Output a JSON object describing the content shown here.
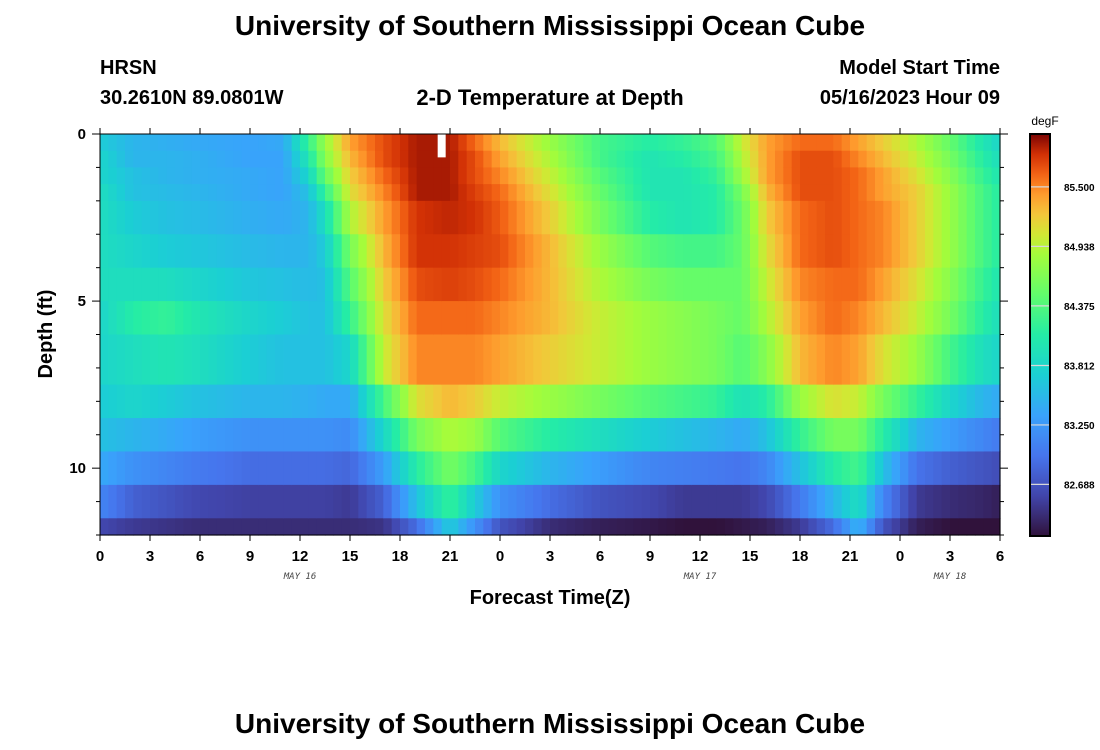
{
  "page_title": "University of Southern Mississippi Ocean Cube",
  "footer_title": "University of Southern Mississippi Ocean Cube",
  "station": {
    "name": "HRSN",
    "coords": "30.2610N  89.0801W"
  },
  "plot_title": "2-D Temperature at Depth",
  "model_start": {
    "label": "Model Start Time",
    "value": "05/16/2023 Hour 09"
  },
  "chart_data": {
    "type": "heatmap",
    "title": "2-D Temperature at Depth",
    "xlabel": "Forecast Time(Z)",
    "ylabel": "Depth (ft)",
    "x_tick_labels": [
      "0",
      "3",
      "6",
      "9",
      "12",
      "15",
      "18",
      "21",
      "0",
      "3",
      "6",
      "9",
      "12",
      "15",
      "18",
      "21",
      "0",
      "3",
      "6"
    ],
    "x_hours": [
      0,
      54
    ],
    "y_tick_labels": [
      "0",
      "5",
      "10"
    ],
    "y_ticks": [
      0,
      5,
      10
    ],
    "ylim": [
      0,
      12
    ],
    "date_labels": [
      {
        "text": "MAY 16",
        "hour": 12
      },
      {
        "text": "MAY 17",
        "hour": 36
      },
      {
        "text": "MAY 18",
        "hour": 51
      }
    ],
    "colorbar": {
      "unit": "degF",
      "vmin": 82.2,
      "vmax": 86.0,
      "ticks": [
        "85.500",
        "84.938",
        "84.375",
        "83.812",
        "83.250",
        "82.688"
      ],
      "tick_values": [
        85.5,
        84.938,
        84.375,
        83.812,
        83.25,
        82.688
      ]
    },
    "depth_layers": [
      0.0,
      0.5,
      1.0,
      1.5,
      2.0,
      3.0,
      4.0,
      5.0,
      6.0,
      7.5,
      8.5,
      9.5,
      10.5,
      11.5,
      12.0
    ],
    "profiles": [
      {
        "hour": 0,
        "temps": [
          83.7,
          83.8,
          83.8,
          83.9,
          83.9,
          83.9,
          83.9,
          83.8,
          83.8,
          83.7,
          83.6,
          83.4,
          83.1,
          82.6
        ]
      },
      {
        "hour": 2,
        "temps": [
          83.5,
          83.5,
          83.6,
          83.6,
          83.7,
          83.8,
          83.9,
          84.1,
          83.9,
          83.8,
          83.5,
          83.2,
          82.8,
          82.5
        ]
      },
      {
        "hour": 4,
        "temps": [
          83.45,
          83.5,
          83.5,
          83.55,
          83.6,
          83.7,
          83.9,
          84.2,
          84.0,
          83.7,
          83.4,
          83.1,
          82.7,
          82.45
        ]
      },
      {
        "hour": 6,
        "temps": [
          83.4,
          83.45,
          83.45,
          83.5,
          83.55,
          83.65,
          83.8,
          84.0,
          83.9,
          83.6,
          83.3,
          83.0,
          82.6,
          82.4
        ]
      },
      {
        "hour": 9,
        "temps": [
          83.35,
          83.35,
          83.4,
          83.4,
          83.45,
          83.55,
          83.65,
          83.8,
          83.7,
          83.5,
          83.2,
          82.9,
          82.55,
          82.4
        ]
      },
      {
        "hour": 11,
        "temps": [
          83.4,
          83.35,
          83.35,
          83.35,
          83.4,
          83.5,
          83.6,
          83.7,
          83.6,
          83.5,
          83.2,
          82.9,
          82.55,
          82.4
        ]
      },
      {
        "hour": 12.5,
        "temps": [
          84.2,
          84.0,
          83.8,
          83.6,
          83.5,
          83.5,
          83.55,
          83.6,
          83.6,
          83.45,
          83.2,
          82.9,
          82.55,
          82.4
        ]
      },
      {
        "hour": 13.5,
        "temps": [
          84.8,
          84.7,
          84.5,
          84.2,
          83.9,
          83.7,
          83.6,
          83.6,
          83.6,
          83.4,
          83.2,
          82.9,
          82.55,
          82.4
        ]
      },
      {
        "hour": 15,
        "temps": [
          85.4,
          85.3,
          85.2,
          85.1,
          84.9,
          84.6,
          84.4,
          84.2,
          83.8,
          83.4,
          83.15,
          82.85,
          82.5,
          82.4
        ]
      },
      {
        "hour": 17,
        "temps": [
          85.7,
          85.7,
          85.6,
          85.5,
          85.4,
          85.3,
          85.2,
          85.1,
          85.0,
          84.3,
          83.8,
          83.3,
          82.8,
          82.45
        ]
      },
      {
        "hour": 19,
        "temps": [
          85.9,
          85.9,
          85.9,
          85.9,
          85.8,
          85.8,
          85.7,
          85.6,
          85.5,
          85.1,
          84.6,
          84.1,
          83.6,
          82.9
        ]
      },
      {
        "hour": 21,
        "temps": [
          85.9,
          85.9,
          85.9,
          85.9,
          85.85,
          85.8,
          85.75,
          85.6,
          85.5,
          85.3,
          84.9,
          84.6,
          84.2,
          83.7
        ]
      },
      {
        "hour": 22.5,
        "temps": [
          85.6,
          85.7,
          85.7,
          85.75,
          85.8,
          85.75,
          85.7,
          85.6,
          85.5,
          85.2,
          84.8,
          84.3,
          83.7,
          83.2
        ]
      },
      {
        "hour": 24,
        "temps": [
          85.3,
          85.4,
          85.5,
          85.6,
          85.65,
          85.7,
          85.6,
          85.5,
          85.4,
          85.0,
          84.4,
          83.8,
          83.2,
          82.7
        ]
      },
      {
        "hour": 27,
        "temps": [
          84.8,
          84.9,
          85.0,
          85.1,
          85.2,
          85.3,
          85.3,
          85.3,
          85.2,
          84.8,
          84.1,
          83.5,
          82.9,
          82.4
        ]
      },
      {
        "hour": 30,
        "temps": [
          84.3,
          84.3,
          84.4,
          84.5,
          84.6,
          84.8,
          84.9,
          85.0,
          85.0,
          84.6,
          83.9,
          83.3,
          82.7,
          82.3
        ]
      },
      {
        "hour": 33,
        "temps": [
          84.1,
          84.0,
          84.0,
          84.0,
          84.1,
          84.4,
          84.6,
          84.8,
          84.8,
          84.4,
          83.7,
          83.1,
          82.6,
          82.25
        ]
      },
      {
        "hour": 35,
        "temps": [
          84.2,
          84.1,
          84.0,
          84.0,
          84.0,
          84.3,
          84.5,
          84.7,
          84.7,
          84.3,
          83.6,
          83.05,
          82.5,
          82.2
        ]
      },
      {
        "hour": 37,
        "temps": [
          84.4,
          84.3,
          84.2,
          84.1,
          84.1,
          84.3,
          84.5,
          84.6,
          84.6,
          84.2,
          83.5,
          83.0,
          82.5,
          82.2
        ]
      },
      {
        "hour": 38.5,
        "temps": [
          85.0,
          84.9,
          84.8,
          84.6,
          84.5,
          84.5,
          84.5,
          84.5,
          84.4,
          83.95,
          83.4,
          82.95,
          82.5,
          82.25
        ]
      },
      {
        "hour": 40,
        "temps": [
          85.4,
          85.4,
          85.4,
          85.3,
          85.2,
          85.1,
          85.0,
          84.9,
          84.7,
          84.1,
          83.6,
          83.1,
          82.6,
          82.3
        ]
      },
      {
        "hour": 42,
        "temps": [
          85.6,
          85.7,
          85.7,
          85.7,
          85.6,
          85.6,
          85.5,
          85.4,
          85.3,
          84.8,
          84.2,
          83.6,
          83.0,
          82.5
        ]
      },
      {
        "hour": 44,
        "temps": [
          85.6,
          85.7,
          85.7,
          85.7,
          85.7,
          85.7,
          85.6,
          85.6,
          85.5,
          85.1,
          84.6,
          84.1,
          83.5,
          82.9
        ]
      },
      {
        "hour": 45.5,
        "temps": [
          85.4,
          85.5,
          85.6,
          85.6,
          85.6,
          85.6,
          85.6,
          85.5,
          85.4,
          85.0,
          84.6,
          84.3,
          83.9,
          83.5
        ]
      },
      {
        "hour": 47,
        "temps": [
          85.2,
          85.3,
          85.4,
          85.4,
          85.5,
          85.5,
          85.4,
          85.3,
          85.1,
          84.6,
          84.1,
          83.6,
          83.1,
          82.7
        ]
      },
      {
        "hour": 49,
        "temps": [
          84.9,
          85.0,
          85.1,
          85.2,
          85.2,
          85.2,
          85.1,
          85.0,
          84.8,
          84.2,
          83.5,
          82.95,
          82.5,
          82.3
        ]
      },
      {
        "hour": 51,
        "temps": [
          84.5,
          84.6,
          84.7,
          84.8,
          84.8,
          84.8,
          84.7,
          84.6,
          84.3,
          83.8,
          83.3,
          82.8,
          82.4,
          82.2
        ]
      },
      {
        "hour": 53,
        "temps": [
          84.0,
          84.1,
          84.2,
          84.3,
          84.3,
          84.3,
          84.2,
          84.1,
          83.9,
          83.5,
          83.1,
          82.7,
          82.35,
          82.2
        ]
      },
      {
        "hour": 54,
        "temps": [
          83.8,
          83.9,
          84.0,
          84.1,
          84.1,
          84.1,
          84.0,
          83.9,
          83.8,
          83.4,
          83.0,
          82.65,
          82.3,
          82.2
        ]
      }
    ],
    "current_time_marker": {
      "hour": 20.5,
      "depth": 0.4
    }
  }
}
